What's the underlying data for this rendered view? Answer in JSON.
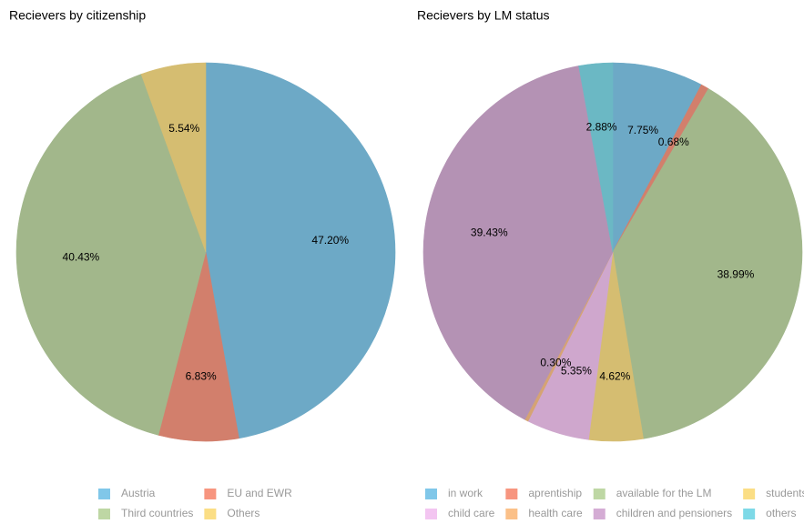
{
  "chart_data": [
    {
      "type": "pie",
      "title": "Recievers by citizenship",
      "categories": [
        "Austria",
        "EU and EWR",
        "Third countries",
        "Others"
      ],
      "values": [
        47.2,
        6.83,
        40.43,
        5.54
      ],
      "value_labels": [
        "47.20%",
        "6.83%",
        "40.43%",
        "5.54%"
      ],
      "colors": [
        "#80c7e9",
        "#f7957f",
        "#bed7a4",
        "#fbde85"
      ]
    },
    {
      "type": "pie",
      "title": "Recievers by LM status",
      "categories": [
        "in work",
        "aprentiship",
        "available for the LM",
        "students",
        "child care",
        "health care",
        "children and pensioners",
        "others"
      ],
      "values": [
        7.75,
        0.68,
        38.99,
        4.62,
        5.35,
        0.3,
        39.43,
        2.88
      ],
      "value_labels": [
        "7.75%",
        "0.68%",
        "38.99%",
        "4.62%",
        "5.35%",
        "0.30%",
        "39.43%",
        "2.88%"
      ],
      "colors": [
        "#80c7e9",
        "#f7957f",
        "#bed7a4",
        "#fbde85",
        "#f3c5f1",
        "#fbc088",
        "#d4acd4",
        "#7ed9e7"
      ]
    }
  ]
}
